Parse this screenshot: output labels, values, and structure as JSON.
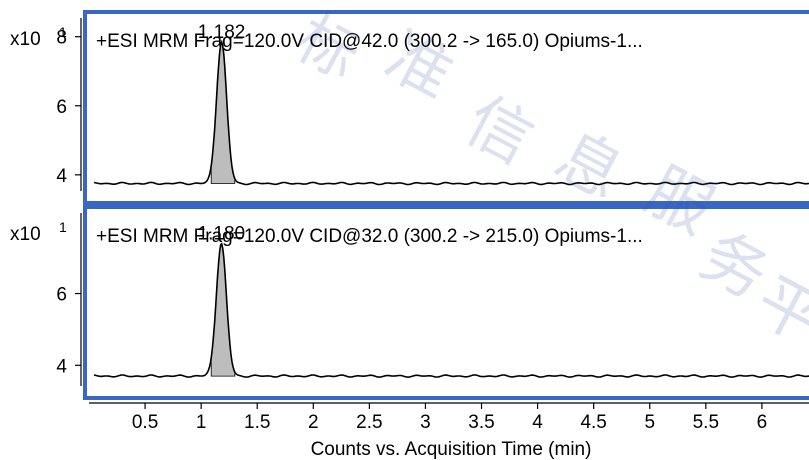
{
  "watermark_chars": [
    "标",
    "准",
    "信",
    "息",
    "服",
    "务",
    "平"
  ],
  "panel_border_color": "#3a66c4",
  "fill_color": "#bdbdbd",
  "chart_data": [
    {
      "type": "line",
      "title": "+ESI MRM Frag=120.0V CID@42.0 (300.2 -> 165.0) Opiums-1...",
      "scale_label": "x10",
      "scale_exponent": "1",
      "peak_label": "1.182",
      "peak": {
        "x": 1.182,
        "y": 7.85,
        "start": 1.09,
        "end": 1.3
      },
      "baseline": 3.75,
      "ylim": [
        3.3,
        8.6
      ],
      "yticks": [
        4,
        6,
        8
      ],
      "ytick_labels": [
        "4",
        "6",
        "8"
      ],
      "xlim": [
        0.0,
        6.42
      ]
    },
    {
      "type": "line",
      "title": "+ESI MRM Frag=120.0V CID@32.0 (300.2 -> 215.0) Opiums-1...",
      "scale_label": "x10",
      "scale_exponent": "1",
      "peak_label": "1.180",
      "peak": {
        "x": 1.18,
        "y": 7.4,
        "start": 1.09,
        "end": 1.3
      },
      "baseline": 3.7,
      "ylim": [
        3.2,
        8.3
      ],
      "yticks": [
        4,
        6
      ],
      "ytick_labels": [
        "4",
        "6"
      ],
      "xlim": [
        0.0,
        6.42
      ]
    }
  ],
  "x_axis": {
    "label": "Counts vs. Acquisition Time (min)",
    "ticks": [
      0.5,
      1,
      1.5,
      2,
      2.5,
      3,
      3.5,
      4,
      4.5,
      5,
      5.5,
      6
    ],
    "tick_labels": [
      "0.5",
      "1",
      "1.5",
      "2",
      "2.5",
      "3",
      "3.5",
      "4",
      "4.5",
      "5",
      "5.5",
      "6"
    ]
  }
}
